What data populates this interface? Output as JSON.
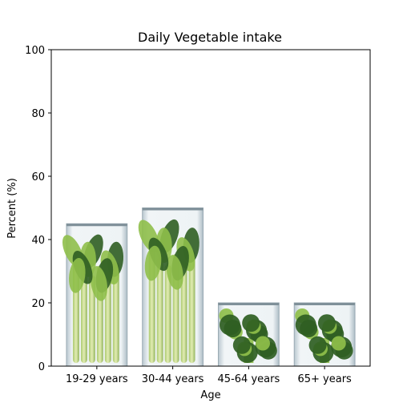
{
  "chart_data": {
    "type": "bar",
    "title": "Daily Vegetable intake",
    "xlabel": "Age",
    "ylabel": "Percent (%)",
    "categories": [
      "19-29 years",
      "30-44 years",
      "45-64 years",
      "65+ years"
    ],
    "values": [
      45,
      50,
      20,
      20
    ],
    "ylim": [
      0,
      100
    ],
    "yticks": [
      0,
      20,
      40,
      60,
      80,
      100
    ],
    "grid": false,
    "bar_fill": "vegetable photographs in glass containers",
    "colors": {
      "frame": "#000000",
      "bar_glass": "#dfe6ea",
      "leaf_dark": "#2f5e22",
      "leaf_light": "#8fbf4a",
      "stalk": "#c9dc8a"
    }
  }
}
